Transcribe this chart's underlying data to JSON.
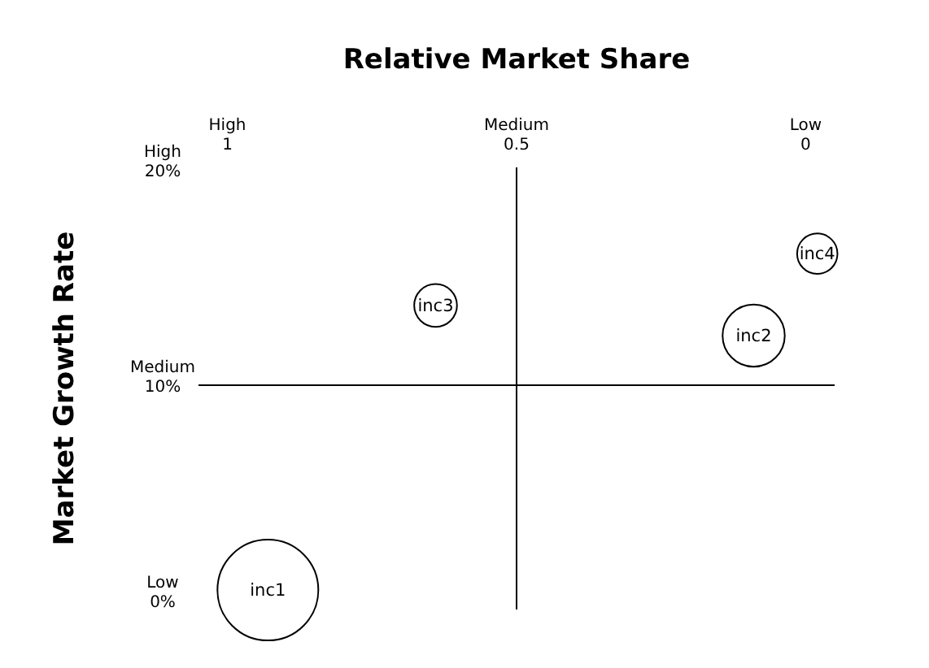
{
  "chart_data": {
    "type": "bubble",
    "xlabel": "Relative Market Share",
    "ylabel": "Market Growth Rate",
    "xlim": [
      1.05,
      -0.05
    ],
    "xticks": [
      1,
      0.5,
      0
    ],
    "ylim": [
      -0.4,
      20.1
    ],
    "yticks": [
      {
        "value": 0,
        "label": "0%"
      },
      {
        "value": 10,
        "label": "10%"
      },
      {
        "value": 20,
        "label": "20%"
      }
    ],
    "annotations": [
      "High",
      "Medium",
      "Low",
      "Low",
      "Medium",
      "High"
    ],
    "ref_lines": [
      {
        "axis": "x",
        "value": 0.5,
        "color": "#000000"
      },
      {
        "axis": "y",
        "value": 10,
        "color": "#000000"
      }
    ],
    "grid": false,
    "series": [
      {
        "name": "inc1",
        "color": "#000000",
        "x": [
          0.93
        ],
        "values": [
          0.5
        ],
        "sizes": [
          1
        ]
      },
      {
        "name": "inc2",
        "color": "#000000",
        "x": [
          0.09
        ],
        "values": [
          12.3
        ],
        "sizes": [
          0.38
        ]
      },
      {
        "name": "inc3",
        "color": "#000000",
        "x": [
          0.64
        ],
        "values": [
          13.7
        ],
        "sizes": [
          0.18
        ]
      },
      {
        "name": "inc4",
        "color": "#000000",
        "x": [
          -0.02
        ],
        "values": [
          16.1
        ],
        "sizes": [
          0.16
        ]
      }
    ]
  }
}
